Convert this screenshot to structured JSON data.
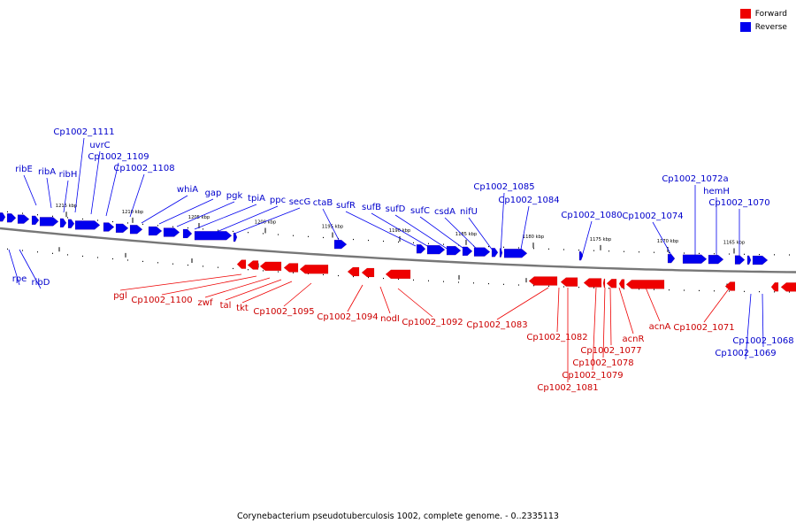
{
  "legend": {
    "forward_label": "Forward",
    "reverse_label": "Reverse",
    "forward_color": "#ee0000",
    "reverse_color": "#0000ee"
  },
  "caption": "Corynebacterium pseudotuberculosis 1002, complete genome. - 0..2335113",
  "colors": {
    "backbone": "#777777",
    "tick": "#000000",
    "forward_label": "#cc0000",
    "reverse_label": "#0000cc"
  },
  "scale": {
    "unit": "kbp",
    "ticks": [
      {
        "kbp": 1215,
        "label": "1215 kbp"
      },
      {
        "kbp": 1210,
        "label": "1210 kbp"
      },
      {
        "kbp": 1205,
        "label": "1205 kbp"
      },
      {
        "kbp": 1200,
        "label": "1200 kbp"
      },
      {
        "kbp": 1195,
        "label": "1195 kbp"
      },
      {
        "kbp": 1190,
        "label": "1190 kbp"
      },
      {
        "kbp": 1185,
        "label": "1185 kbp"
      },
      {
        "kbp": 1180,
        "label": "1180 kbp"
      },
      {
        "kbp": 1175,
        "label": "1175 kbp"
      },
      {
        "kbp": 1170,
        "label": "1170 kbp"
      },
      {
        "kbp": 1165,
        "label": "1165 kbp"
      }
    ]
  },
  "reverse_gene_labels": [
    "ribE",
    "ribA",
    "ribH",
    "Cp1002_1111",
    "uvrC",
    "Cp1002_1109",
    "Cp1002_1108",
    "whiA",
    "gap",
    "pgk",
    "tpiA",
    "ppc",
    "secG",
    "ctaB",
    "sufR",
    "sufB",
    "sufD",
    "sufC",
    "csdA",
    "nifU",
    "Cp1002_1085",
    "Cp1002_1084",
    "Cp1002_1080",
    "Cp1002_1074",
    "Cp1002_1072a",
    "hemH",
    "Cp1002_1070",
    "rpe",
    "ribD",
    "Cp1002_1068",
    "Cp1002_1069"
  ],
  "forward_gene_labels": [
    "pgl",
    "Cp1002_1100",
    "zwf",
    "tal",
    "tkt",
    "Cp1002_1095",
    "Cp1002_1094",
    "nodI",
    "Cp1002_1092",
    "Cp1002_1083",
    "Cp1002_1082",
    "Cp1002_1077",
    "Cp1002_1078",
    "Cp1002_1079",
    "Cp1002_1081",
    "acnR",
    "acnA",
    "Cp1002_1071"
  ]
}
